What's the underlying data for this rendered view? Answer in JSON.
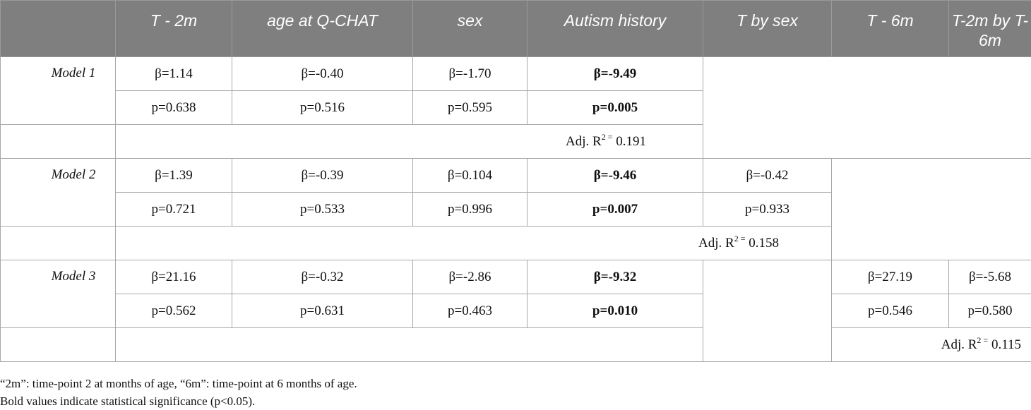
{
  "headers": [
    "",
    "T - 2m",
    "age at Q-CHAT",
    "sex",
    "Autism history",
    "T by sex",
    "T - 6m",
    "T-2m by T-6m"
  ],
  "rows": {
    "m1": {
      "label": "Model 1",
      "beta": [
        "β=1.14",
        "β=-0.40",
        "β=-1.70",
        "β=-9.49"
      ],
      "p": [
        "p=0.638",
        "p=0.516",
        "p=0.595",
        "p=0.005"
      ],
      "adj_prefix": "Adj. R",
      "adj_sup": "2 =",
      "adj_value": " 0.191"
    },
    "m2": {
      "label": "Model 2",
      "beta": [
        "β=1.39",
        "β=-0.39",
        "β=0.104",
        "β=-9.46",
        "β=-0.42"
      ],
      "p": [
        "p=0.721",
        "p=0.533",
        "p=0.996",
        "p=0.007",
        "p=0.933"
      ],
      "adj_prefix": "Adj. R",
      "adj_sup": "2 =",
      "adj_value": " 0.158"
    },
    "m3": {
      "label": "Model 3",
      "beta": [
        "β=21.16",
        "β=-0.32",
        "β=-2.86",
        "β=-9.32",
        "β=27.19",
        "β=-5.68"
      ],
      "p": [
        "p=0.562",
        "p=0.631",
        "p=0.463",
        "p=0.010",
        "p=0.546",
        "p=0.580"
      ],
      "adj_prefix": "Adj. R",
      "adj_sup": "2 =",
      "adj_value": " 0.115"
    }
  },
  "notes": [
    "“2m”: time-point 2 at months of age, “6m”: time-point at 6 months of age.",
    "Bold values indicate statistical significance (p<0.05)."
  ]
}
